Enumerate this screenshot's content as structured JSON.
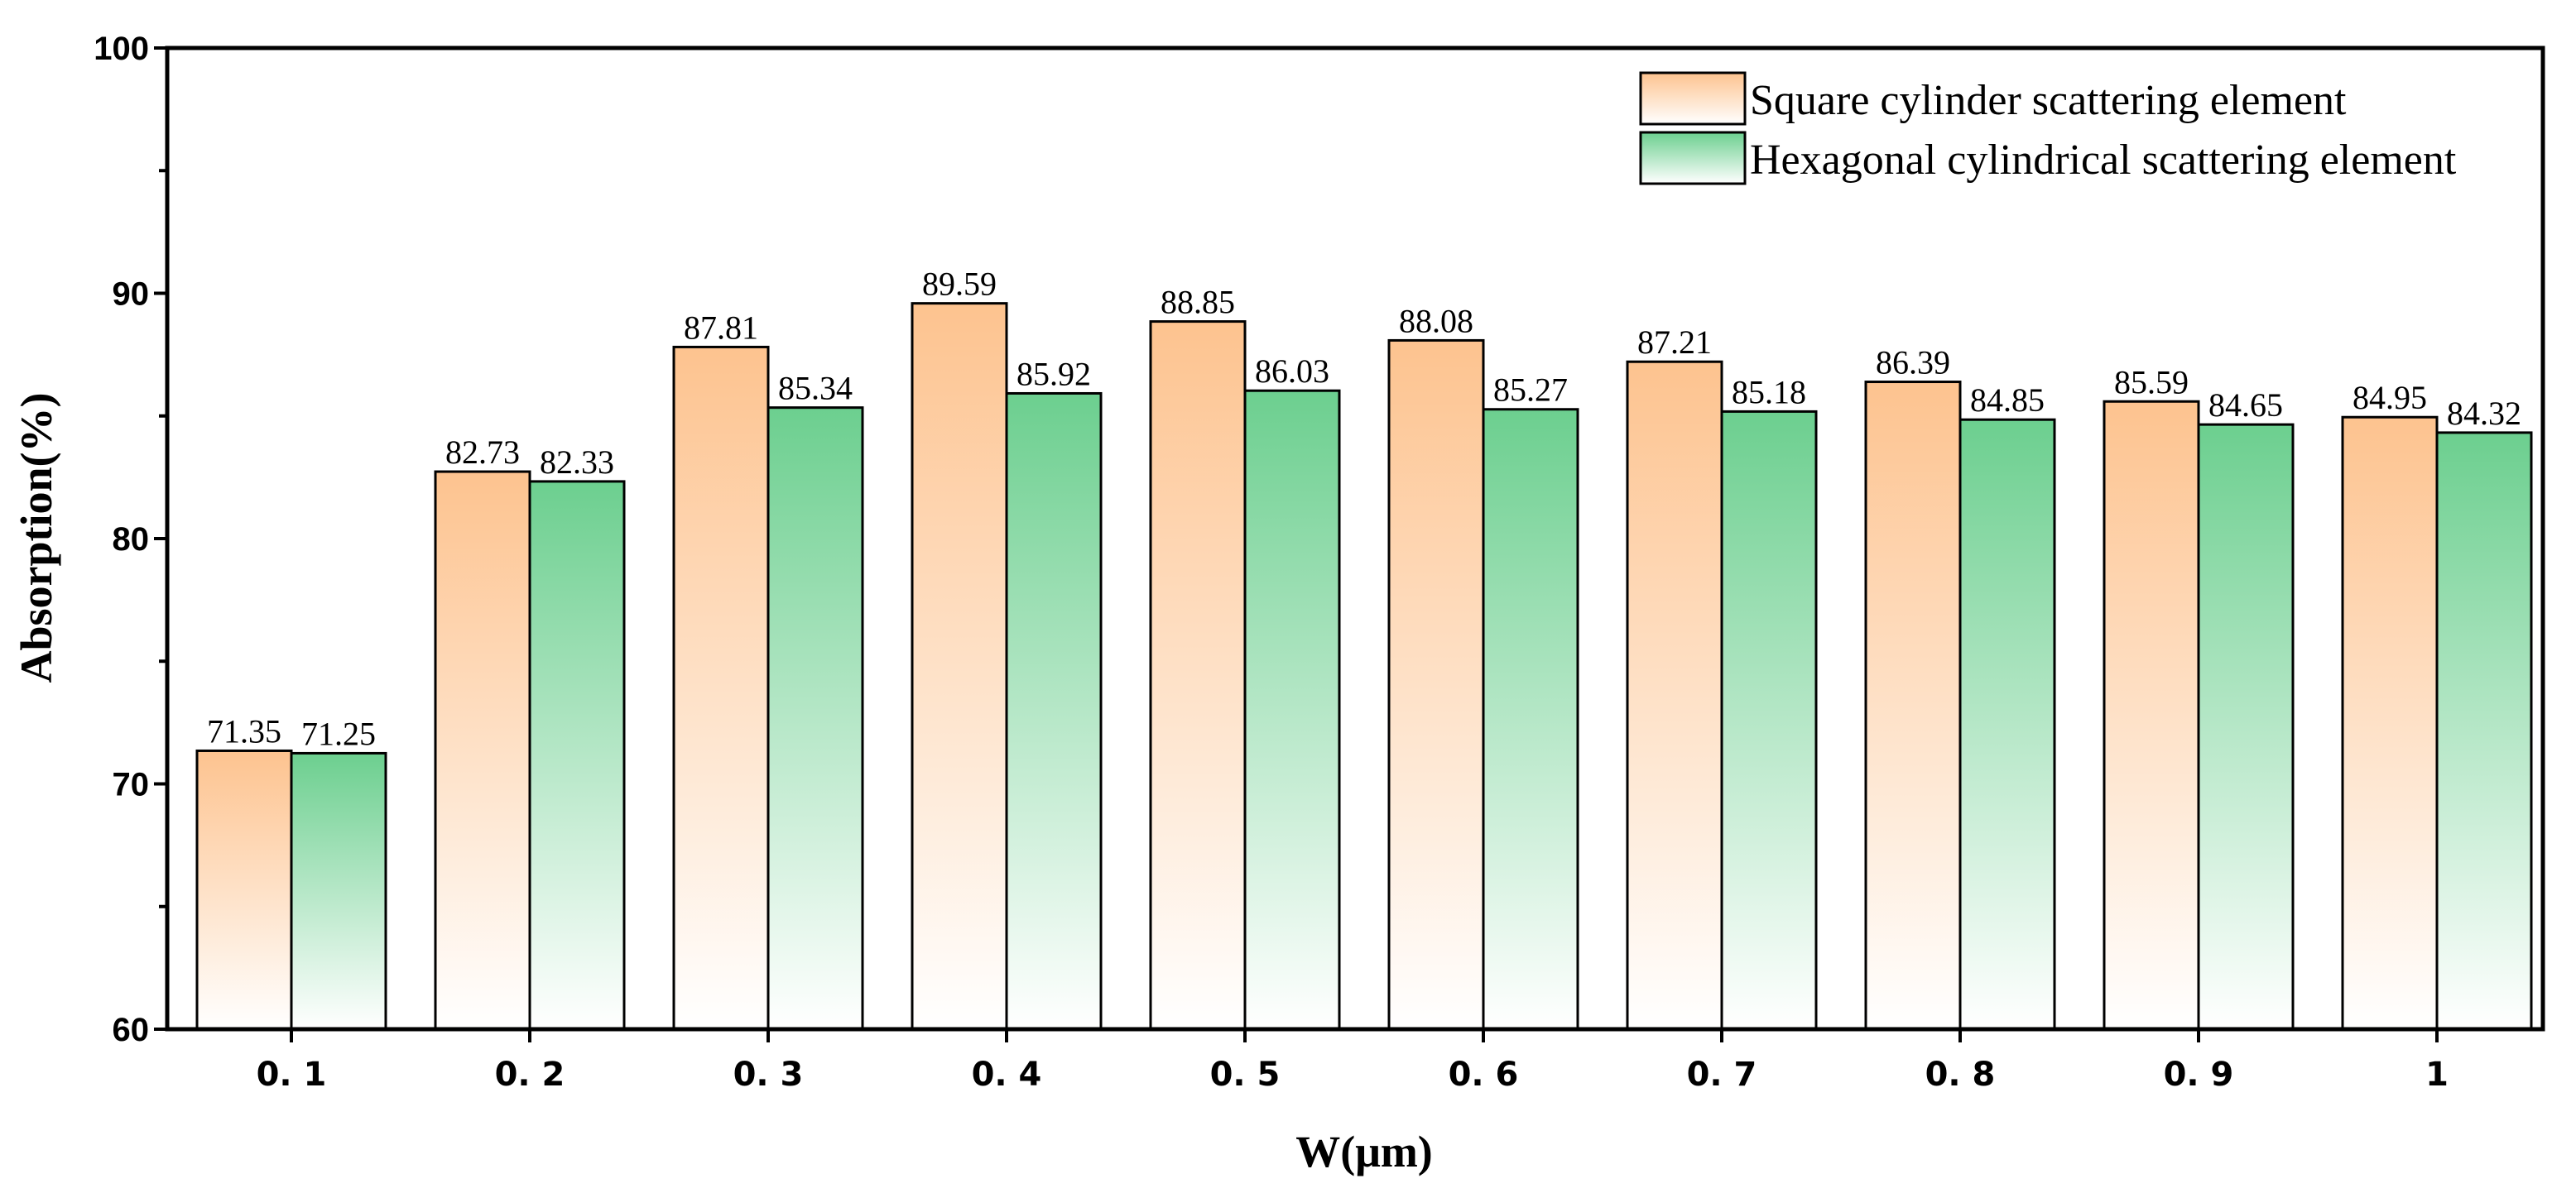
{
  "chart_data": {
    "type": "bar",
    "title": "",
    "xlabel": "W(μm)",
    "ylabel": "Absorption(%)",
    "categories": [
      "0.1",
      "0.2",
      "0.3",
      "0.4",
      "0.5",
      "0.6",
      "0.7",
      "0.8",
      "0.9",
      "1"
    ],
    "ylim": [
      60,
      100
    ],
    "yticks": [
      60,
      70,
      80,
      90,
      100
    ],
    "legend_position": "top-right",
    "grid": false,
    "series": [
      {
        "name": "Square cylinder scattering element",
        "color_top": "#fdc38f",
        "color_bottom": "#ffffff",
        "values": [
          71.35,
          82.73,
          87.81,
          89.59,
          88.85,
          88.08,
          87.21,
          86.39,
          85.59,
          84.95
        ],
        "labels": [
          "71.35",
          "82.73",
          "87.81",
          "89.59",
          "88.85",
          "88.08",
          "87.21",
          "86.39",
          "85.59",
          "84.95"
        ]
      },
      {
        "name": "Hexagonal cylindrical scattering element",
        "color_top": "#6ccf8f",
        "color_bottom": "#ffffff",
        "values": [
          71.25,
          82.33,
          85.34,
          85.92,
          86.03,
          85.27,
          85.18,
          84.85,
          84.65,
          84.32
        ],
        "labels": [
          "71.25",
          "82.33",
          "85.34",
          "85.92",
          "86.03",
          "85.27",
          "85.18",
          "84.85",
          "84.65",
          "84.32"
        ]
      }
    ]
  }
}
